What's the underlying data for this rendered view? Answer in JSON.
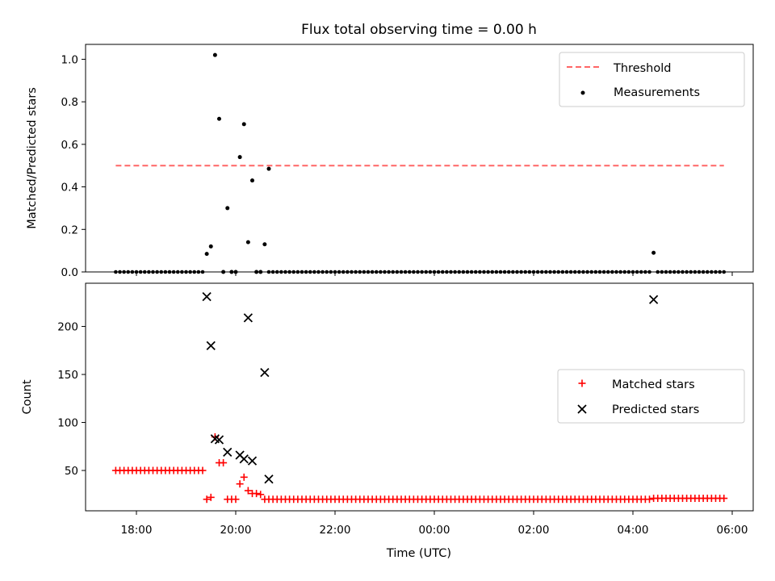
{
  "colors": {
    "threshold": "#ff6666",
    "measurement": "#000000",
    "matched": "#ff0000",
    "predicted": "#000000"
  },
  "chart_data": [
    {
      "type": "scatter",
      "title": "Flux total observing time = 0.00 h",
      "xlabel": "",
      "ylabel": "Matched/Predicted stars",
      "ylim": [
        0,
        1.07
      ],
      "yticks": [
        0.0,
        0.2,
        0.4,
        0.6,
        0.8,
        1.0
      ],
      "ytick_labels": [
        "0.0",
        "0.2",
        "0.4",
        "0.6",
        "0.8",
        "1.0"
      ],
      "legend_position": "top-right",
      "threshold": {
        "name": "Threshold",
        "value": 0.5,
        "x_range": [
          "17:35",
          "05:50"
        ]
      },
      "measurements": {
        "name": "Measurements",
        "zero_runs": [
          [
            "17:35",
            "19:20"
          ],
          [
            "20:40",
            "04:22"
          ],
          [
            "04:30",
            "05:50"
          ]
        ],
        "points": [
          [
            "19:25",
            0.085
          ],
          [
            "19:30",
            0.12
          ],
          [
            "19:35",
            1.02
          ],
          [
            "19:40",
            0.72
          ],
          [
            "19:45",
            0.0
          ],
          [
            "19:50",
            0.3
          ],
          [
            "19:55",
            0.0
          ],
          [
            "20:00",
            0.0
          ],
          [
            "20:05",
            0.54
          ],
          [
            "20:10",
            0.695
          ],
          [
            "20:15",
            0.14
          ],
          [
            "20:20",
            0.43
          ],
          [
            "20:25",
            0.0
          ],
          [
            "20:30",
            0.0
          ],
          [
            "20:35",
            0.13
          ],
          [
            "20:40",
            0.485
          ],
          [
            "04:25",
            0.09
          ]
        ]
      }
    },
    {
      "type": "scatter",
      "title": "",
      "xlabel": "Time (UTC)",
      "ylabel": "Count",
      "ylim": [
        8,
        245
      ],
      "yticks": [
        50,
        100,
        150,
        200
      ],
      "ytick_labels": [
        "50",
        "100",
        "150",
        "200"
      ],
      "xticks": [
        "18:00",
        "20:00",
        "22:00",
        "00:00",
        "02:00",
        "04:00",
        "06:00"
      ],
      "legend_position": "center-right",
      "matched": {
        "name": "Matched stars",
        "runs": [
          {
            "from": "17:35",
            "to": "19:20",
            "value": 50
          },
          {
            "from": "20:40",
            "to": "04:20",
            "value": 20
          },
          {
            "from": "04:25",
            "to": "05:50",
            "value": 21
          }
        ],
        "points": [
          [
            "19:25",
            20
          ],
          [
            "19:30",
            22
          ],
          [
            "19:35",
            85
          ],
          [
            "19:40",
            58
          ],
          [
            "19:45",
            58
          ],
          [
            "19:50",
            20
          ],
          [
            "19:55",
            20
          ],
          [
            "20:00",
            20
          ],
          [
            "20:05",
            36
          ],
          [
            "20:10",
            43
          ],
          [
            "20:15",
            29
          ],
          [
            "20:20",
            26
          ],
          [
            "20:25",
            26
          ],
          [
            "20:30",
            25
          ],
          [
            "20:35",
            20
          ]
        ]
      },
      "predicted": {
        "name": "Predicted stars",
        "points": [
          [
            "19:25",
            231
          ],
          [
            "19:30",
            180
          ],
          [
            "19:35",
            83
          ],
          [
            "19:40",
            82
          ],
          [
            "19:50",
            69
          ],
          [
            "20:05",
            66
          ],
          [
            "20:10",
            62
          ],
          [
            "20:15",
            209
          ],
          [
            "20:20",
            60
          ],
          [
            "20:35",
            152
          ],
          [
            "20:40",
            41
          ],
          [
            "04:25",
            228
          ]
        ]
      }
    }
  ]
}
